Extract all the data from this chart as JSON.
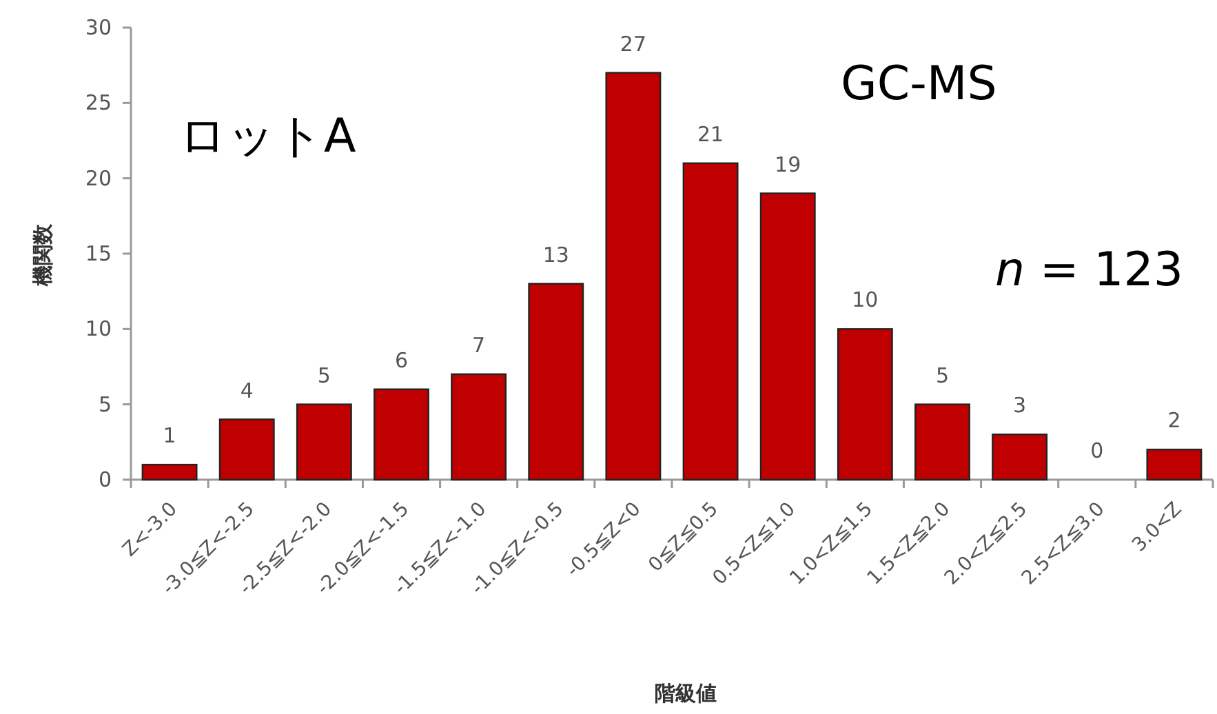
{
  "chart_data": {
    "type": "bar",
    "xlabel": "階級値",
    "ylabel": "機関数",
    "categories": [
      "Z<-3.0",
      "-3.0≦Z<-2.5",
      "-2.5≦Z<-2.0",
      "-2.0≦Z<-1.5",
      "-1.5≦Z<-1.0",
      "-1.0≦Z<-0.5",
      "-0.5≦Z<0",
      "0≦Z≦0.5",
      "0.5<Z≦1.0",
      "1.0<Z≦1.5",
      "1.5<Z≦2.0",
      "2.0<Z≦2.5",
      "2.5<Z≦3.0",
      "3.0<Z"
    ],
    "values": [
      1,
      4,
      5,
      6,
      7,
      13,
      27,
      21,
      19,
      10,
      5,
      3,
      0,
      2
    ],
    "color": "#c00000",
    "ylim": [
      0,
      30
    ],
    "yticks": [
      0,
      5,
      10,
      15,
      20,
      25,
      30
    ],
    "data_labels": true,
    "grid": false,
    "annotations": [
      "ロットA",
      "GC-MS",
      "*n* = 123"
    ]
  }
}
